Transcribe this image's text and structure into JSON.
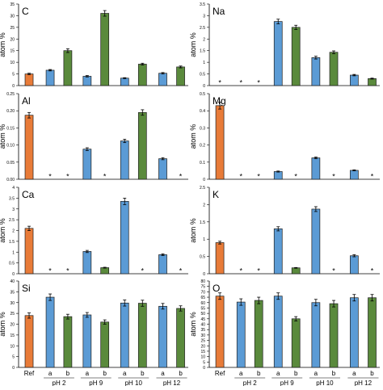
{
  "colors": {
    "Ref": "#e87b38",
    "a": "#5b9bd5",
    "b": "#5a8a3c",
    "axis": "#000000",
    "error": "#000000",
    "text": "#000000"
  },
  "x_groups": {
    "Ref": "Ref",
    "pH 2": "pH 2",
    "pH 9": "pH 9",
    "pH 10": "pH 10",
    "pH 12": "pH 12"
  },
  "chart_data": [
    {
      "type": "bar",
      "title": "C",
      "ylabel": "atom %",
      "ylim": [
        0,
        35
      ],
      "yticks": [
        "0",
        "5",
        "10",
        "15",
        "20",
        "25",
        "30",
        "35"
      ],
      "categories": [
        "Ref",
        "pH 2 a",
        "pH 2 b",
        "pH 9 a",
        "pH 9 b",
        "pH 10 a",
        "pH 10 b",
        "pH 12 a",
        "pH 12 b"
      ],
      "values": [
        5.0,
        6.6,
        15.0,
        4.0,
        31.0,
        3.2,
        9.2,
        5.3,
        8.0
      ],
      "errors": [
        0.3,
        0.3,
        0.8,
        0.3,
        1.2,
        0.2,
        0.4,
        0.3,
        0.4
      ],
      "not_detected": []
    },
    {
      "type": "bar",
      "title": "Na",
      "ylabel": "atom %",
      "ylim": [
        0,
        3.5
      ],
      "yticks": [
        "0",
        "0.5",
        "1",
        "1.5",
        "2",
        "2.5",
        "3",
        "3.5"
      ],
      "categories": [
        "Ref",
        "pH 2 a",
        "pH 2 b",
        "pH 9 a",
        "pH 9 b",
        "pH 10 a",
        "pH 10 b",
        "pH 12 a",
        "pH 12 b"
      ],
      "values": [
        null,
        null,
        null,
        2.75,
        2.5,
        1.2,
        1.43,
        0.45,
        0.3
      ],
      "errors": [
        0,
        0,
        0,
        0.1,
        0.09,
        0.06,
        0.06,
        0.03,
        0.02
      ],
      "not_detected": [
        0,
        1,
        2
      ]
    },
    {
      "type": "bar",
      "title": "Al",
      "ylabel": "atom %",
      "ylim": [
        0,
        0.25
      ],
      "yticks": [
        "0.00",
        "0.05",
        "0.10",
        "0.15",
        "0.20",
        "0.25"
      ],
      "categories": [
        "Ref",
        "pH 2 a",
        "pH 2 b",
        "pH 9 a",
        "pH 9 b",
        "pH 10 a",
        "pH 10 b",
        "pH 12 a",
        "pH 12 b"
      ],
      "values": [
        0.187,
        null,
        null,
        0.088,
        null,
        0.112,
        0.195,
        0.06,
        null
      ],
      "errors": [
        0.008,
        0,
        0,
        0.004,
        0,
        0.005,
        0.008,
        0.003,
        0
      ],
      "not_detected": [
        1,
        2,
        4,
        8
      ]
    },
    {
      "type": "bar",
      "title": "Mg",
      "ylabel": "atom %",
      "ylim": [
        0,
        0.5
      ],
      "yticks": [
        "0",
        "0.1",
        "0.2",
        "0.3",
        "0.4",
        "0.5"
      ],
      "categories": [
        "Ref",
        "pH 2 a",
        "pH 2 b",
        "pH 9 a",
        "pH 9 b",
        "pH 10 a",
        "pH 10 b",
        "pH 12 a",
        "pH 12 b"
      ],
      "values": [
        0.43,
        null,
        null,
        0.045,
        null,
        0.125,
        null,
        0.052,
        null
      ],
      "errors": [
        0.02,
        0,
        0,
        0.003,
        0,
        0.005,
        0,
        0.003,
        0
      ],
      "not_detected": [
        1,
        2,
        4,
        6,
        8
      ]
    },
    {
      "type": "bar",
      "title": "Ca",
      "ylabel": "atom %",
      "ylim": [
        0,
        4
      ],
      "yticks": [
        "0",
        "0.5",
        "1",
        "1.5",
        "2",
        "2.5",
        "3",
        "3.5",
        "4"
      ],
      "categories": [
        "Ref",
        "pH 2 a",
        "pH 2 b",
        "pH 9 a",
        "pH 9 b",
        "pH 10 a",
        "pH 10 b",
        "pH 12 a",
        "pH 12 b"
      ],
      "values": [
        2.1,
        null,
        null,
        1.03,
        0.28,
        3.35,
        null,
        0.88,
        null
      ],
      "errors": [
        0.1,
        0,
        0,
        0.05,
        0.02,
        0.15,
        0,
        0.04,
        0
      ],
      "not_detected": [
        1,
        2,
        6,
        8
      ]
    },
    {
      "type": "bar",
      "title": "K",
      "ylabel": "atom %",
      "ylim": [
        0,
        2.5
      ],
      "yticks": [
        "0",
        "0.5",
        "1",
        "1.5",
        "2",
        "2.5"
      ],
      "categories": [
        "Ref",
        "pH 2 a",
        "pH 2 b",
        "pH 9 a",
        "pH 9 b",
        "pH 10 a",
        "pH 10 b",
        "pH 12 a",
        "pH 12 b"
      ],
      "values": [
        0.9,
        null,
        null,
        1.3,
        0.17,
        1.87,
        null,
        0.52,
        null
      ],
      "errors": [
        0.04,
        0,
        0,
        0.06,
        0.01,
        0.07,
        0,
        0.03,
        0
      ],
      "not_detected": [
        1,
        2,
        6,
        8
      ]
    },
    {
      "type": "bar",
      "title": "Si",
      "ylabel": "atom %",
      "ylim": [
        0,
        40
      ],
      "yticks": [
        "0",
        "5",
        "10",
        "15",
        "20",
        "25",
        "30",
        "35",
        "40"
      ],
      "categories": [
        "Ref",
        "pH 2 a",
        "pH 2 b",
        "pH 9 a",
        "pH 9 b",
        "pH 10 a",
        "pH 10 b",
        "pH 12 a",
        "pH 12 b"
      ],
      "values": [
        24,
        32.5,
        23.5,
        24.3,
        21,
        29.8,
        29.7,
        28.3,
        27.3
      ],
      "errors": [
        1.2,
        1.5,
        1.1,
        1.1,
        1.0,
        1.4,
        1.4,
        1.3,
        1.2
      ],
      "not_detected": []
    },
    {
      "type": "bar",
      "title": "O",
      "ylabel": "atom %",
      "ylim": [
        0,
        80
      ],
      "yticks": [
        "0",
        "5",
        "10",
        "15",
        "20",
        "25",
        "30",
        "35",
        "40",
        "45",
        "50",
        "55",
        "60",
        "65",
        "70",
        "75",
        "80"
      ],
      "categories": [
        "Ref",
        "pH 2 a",
        "pH 2 b",
        "pH 9 a",
        "pH 9 b",
        "pH 10 a",
        "pH 10 b",
        "pH 12 a",
        "pH 12 b"
      ],
      "values": [
        66,
        60.5,
        62,
        66,
        45,
        60,
        59,
        64.5,
        64.5
      ],
      "errors": [
        3,
        3,
        3,
        3,
        2,
        3,
        3,
        3,
        3
      ],
      "not_detected": []
    }
  ]
}
